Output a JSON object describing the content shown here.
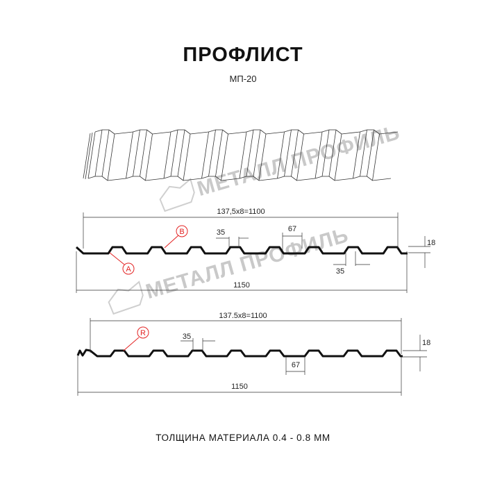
{
  "header": {
    "title": "ПРОФЛИСТ",
    "subtitle": "МП-20"
  },
  "watermark": {
    "text": "МЕТАЛЛ ПРОФИЛЬ",
    "color": "#c9c9c9"
  },
  "profile_top": {
    "span_label": "137,5x8=1100",
    "width_label": "1150",
    "crest_label": "35",
    "trough_label": "67",
    "trough_bottom_label": "35",
    "height_label": "18",
    "marker_b": "B",
    "marker_a": "A"
  },
  "profile_bottom": {
    "span_label": "137.5x8=1100",
    "width_label": "1150",
    "crest_label": "35",
    "trough_label": "67",
    "height_label": "18",
    "marker_r": "R"
  },
  "footer": {
    "thickness": "ТОЛЩИНА МАТЕРИАЛА 0.4 - 0.8 ММ"
  },
  "colors": {
    "marker": "#e32222",
    "profile": "#111111"
  }
}
